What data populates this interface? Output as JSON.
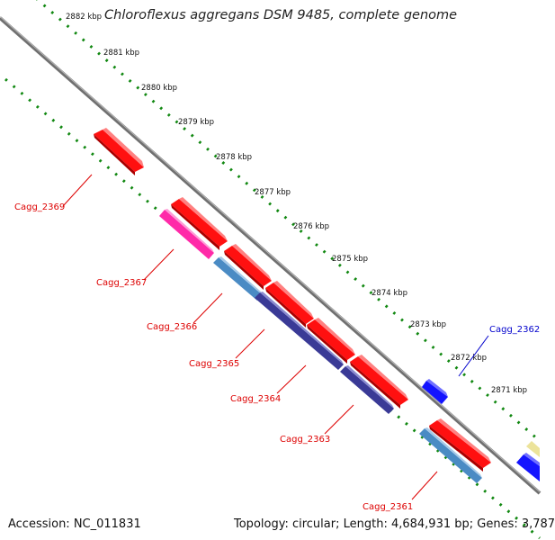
{
  "title": "Chloroflexus aggregans DSM 9485, complete genome",
  "footer": {
    "accession": "Accession: NC_011831",
    "summary": "Topology: circular; Length: 4,684,931 bp; Genes: 3,787"
  },
  "ticks": [
    "2882 kbp",
    "2881 kbp",
    "2880 kbp",
    "2879 kbp",
    "2878 kbp",
    "2877 kbp",
    "2876 kbp",
    "2875 kbp",
    "2874 kbp",
    "2873 kbp",
    "2872 kbp",
    "2871 kbp"
  ],
  "genes": [
    {
      "label": "Cagg_2369",
      "color": "#dd0000"
    },
    {
      "label": "Cagg_2367",
      "color": "#dd0000"
    },
    {
      "label": "Cagg_2366",
      "color": "#dd0000"
    },
    {
      "label": "Cagg_2365",
      "color": "#dd0000"
    },
    {
      "label": "Cagg_2364",
      "color": "#dd0000"
    },
    {
      "label": "Cagg_2363",
      "color": "#dd0000"
    },
    {
      "label": "Cagg_2362",
      "color": "#0000cc"
    },
    {
      "label": "Cagg_2361",
      "color": "#dd0000"
    }
  ],
  "colors": {
    "forward_cds": "#ff0000",
    "reverse_cds": "#1a1aff",
    "blast_pink": "#ff33aa",
    "blast_steel": "#4d8fc8",
    "blast_navy": "#3d3d99",
    "blast_yellow": "#eee8a0",
    "backbone": "#888888",
    "tick_dots": "#118811"
  }
}
